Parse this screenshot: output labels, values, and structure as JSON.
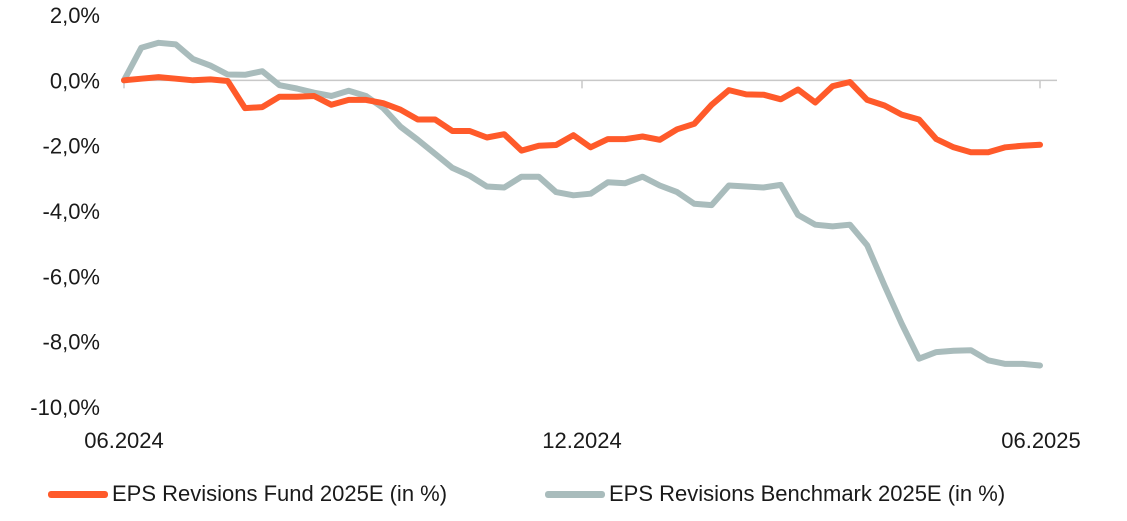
{
  "chart_data": {
    "type": "line",
    "title": "",
    "xlabel": "",
    "ylabel": "",
    "ylim": [
      -10,
      2
    ],
    "yticks": [
      2,
      0,
      -2,
      -4,
      -6,
      -8,
      -10
    ],
    "ytick_labels": [
      "2,0%",
      "0,0%",
      "-2,0%",
      "-4,0%",
      "-6,0%",
      "-8,0%",
      "-10,0%"
    ],
    "xlim": [
      0,
      54
    ],
    "xticks": [
      0,
      27,
      54
    ],
    "xtick_labels": [
      "06.2024",
      "12.2024",
      "06.2025"
    ],
    "grid": false,
    "legend": "bottom",
    "series": [
      {
        "name": "EPS Revisions Fund 2025E (in %)",
        "color": "#ff5a2a",
        "values": [
          0.0,
          0.05,
          0.1,
          0.05,
          0.0,
          0.03,
          -0.02,
          -0.85,
          -0.82,
          -0.5,
          -0.5,
          -0.48,
          -0.75,
          -0.6,
          -0.6,
          -0.7,
          -0.9,
          -1.2,
          -1.2,
          -1.55,
          -1.55,
          -1.75,
          -1.65,
          -2.15,
          -2.0,
          -1.98,
          -1.68,
          -2.05,
          -1.8,
          -1.8,
          -1.72,
          -1.82,
          -1.5,
          -1.33,
          -0.75,
          -0.3,
          -0.43,
          -0.44,
          -0.58,
          -0.28,
          -0.68,
          -0.18,
          -0.05,
          -0.6,
          -0.77,
          -1.05,
          -1.2,
          -1.8,
          -2.05,
          -2.2,
          -2.2,
          -2.05,
          -2.0,
          -1.97
        ]
      },
      {
        "name": "EPS Revisions Benchmark 2025E (in %)",
        "color": "#a9bcbc",
        "values": [
          0.0,
          1.0,
          1.15,
          1.1,
          0.65,
          0.45,
          0.18,
          0.17,
          0.28,
          -0.15,
          -0.25,
          -0.38,
          -0.48,
          -0.32,
          -0.48,
          -0.85,
          -1.42,
          -1.82,
          -2.25,
          -2.68,
          -2.92,
          -3.25,
          -3.28,
          -2.95,
          -2.95,
          -3.42,
          -3.52,
          -3.47,
          -3.12,
          -3.15,
          -2.95,
          -3.22,
          -3.42,
          -3.78,
          -3.82,
          -3.22,
          -3.25,
          -3.28,
          -3.2,
          -4.12,
          -4.42,
          -4.47,
          -4.42,
          -5.05,
          -6.28,
          -7.45,
          -8.52,
          -8.32,
          -8.28,
          -8.26,
          -8.57,
          -8.68,
          -8.68,
          -8.73
        ]
      }
    ]
  }
}
